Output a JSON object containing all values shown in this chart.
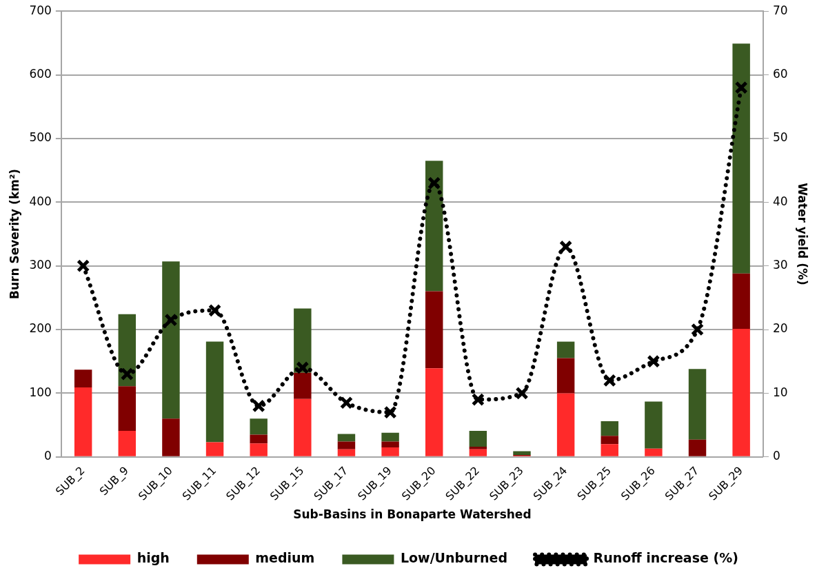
{
  "chart_data": {
    "type": "bar",
    "stacked": true,
    "xlabel": "Sub-Basins in Bonaparte Watershed",
    "ylabel": "Burn Severity (km²)",
    "y2label": "Water yield (%)",
    "categories": [
      "SUB_2",
      "SUB_9",
      "SUB_10",
      "SUB_11",
      "SUB_12",
      "SUB_15",
      "SUB_17",
      "SUB_19",
      "SUB_20",
      "SUB_22",
      "SUB_23",
      "SUB_24",
      "SUB_25",
      "SUB_26",
      "SUB_27",
      "SUB_29"
    ],
    "series": [
      {
        "name": "high",
        "color": "#ff2a2a",
        "values": [
          109,
          41,
          0,
          23,
          21,
          91,
          12,
          15,
          139,
          12,
          2,
          100,
          20,
          13,
          0,
          201
        ]
      },
      {
        "name": "medium",
        "color": "#800000",
        "values": [
          28,
          70,
          60,
          0,
          14,
          41,
          12,
          9,
          121,
          4,
          1,
          55,
          13,
          0,
          27,
          87
        ]
      },
      {
        "name": "Low/Unburned",
        "color": "#3a5a22",
        "values": [
          0,
          113,
          247,
          158,
          25,
          101,
          12,
          14,
          205,
          25,
          6,
          26,
          23,
          74,
          111,
          361
        ]
      },
      {
        "name": "Runoff increase (%)",
        "type": "line",
        "axis": "y2",
        "color": "#000000",
        "marker": "cross",
        "line_style": "dotted",
        "values": [
          30,
          13,
          21.5,
          23,
          8,
          14,
          8.5,
          7,
          43,
          9,
          10,
          33,
          12,
          15,
          20,
          58
        ]
      }
    ],
    "ylim": [
      0,
      700
    ],
    "yticks": [
      0,
      100,
      200,
      300,
      400,
      500,
      600,
      700
    ],
    "y2lim": [
      0,
      70
    ],
    "y2ticks": [
      0,
      10,
      20,
      30,
      40,
      50,
      60,
      70
    ],
    "grid": "y",
    "legend": "bottom"
  }
}
